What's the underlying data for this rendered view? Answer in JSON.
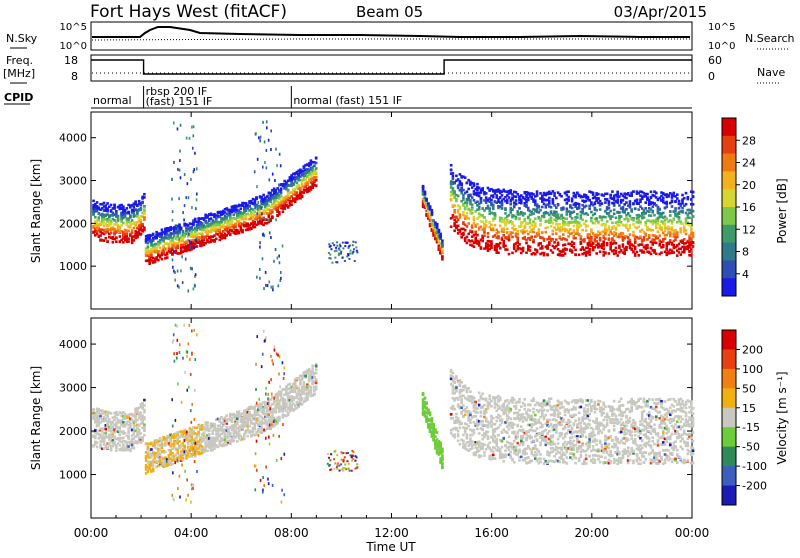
{
  "header": {
    "title": "Fort Hays West (fitACF)",
    "beam": "Beam 05",
    "date": "03/Apr/2015"
  },
  "strips": {
    "nsky_label": "N.Sky",
    "nsearch_label": "N.Search",
    "nsky_ticks": [
      "10^5",
      "10^0"
    ],
    "nsearch_ticks": [
      "10^5",
      "10^0"
    ],
    "freq_label": "Freq.",
    "freq_unit": "[MHz]",
    "freq_ticks": [
      "18",
      "8"
    ],
    "nave_label": "Nave",
    "nave_ticks": [
      "60",
      "0"
    ],
    "cpid_label": "CPID",
    "cpid_segments": [
      {
        "start_hour": 0,
        "end_hour": 2.1,
        "line1": "normal",
        "line2": ""
      },
      {
        "start_hour": 2.1,
        "end_hour": 8.0,
        "line1": "rbsp 200 IF",
        "line2": "(fast) 151 IF"
      },
      {
        "start_hour": 8.0,
        "end_hour": 24,
        "line1": "normal (fast) 151 IF",
        "line2": ""
      }
    ],
    "freq_high_intervals": [
      [
        0,
        2.1
      ],
      [
        14.1,
        24
      ]
    ]
  },
  "chart_data": [
    {
      "type": "heatmap",
      "panel": "power",
      "ylabel": "Slant Range [km]",
      "yticks": [
        "1000",
        "2000",
        "3000",
        "4000"
      ],
      "ylim": [
        0,
        4600
      ],
      "colorbar": {
        "label": "Power [dB]",
        "ticks": [
          "4",
          "8",
          "12",
          "16",
          "20",
          "24",
          "28"
        ],
        "range": [
          0,
          32
        ],
        "colors": [
          "#1a1ae6",
          "#2d4fb5",
          "#2f7a8a",
          "#3f9a6a",
          "#7ec94a",
          "#d6d632",
          "#f2b21e",
          "#ef7a12",
          "#e64010",
          "#d80000"
        ]
      }
    },
    {
      "type": "heatmap",
      "panel": "velocity",
      "ylabel": "Slant Range [km]",
      "yticks": [
        "1000",
        "2000",
        "3000",
        "4000"
      ],
      "ylim": [
        0,
        4600
      ],
      "colorbar": {
        "label": "Velocity [m s⁻¹]",
        "ticks": [
          "200",
          "100",
          "50",
          "15",
          "-15",
          "-50",
          "-100",
          "-200"
        ],
        "colors": [
          "#1a1ab4",
          "#3a5fbf",
          "#2e8b57",
          "#6ccc3a",
          "#c8c8c0",
          "#f0b010",
          "#f08010",
          "#e84010",
          "#d80000"
        ]
      }
    }
  ],
  "xaxis": {
    "ticks": [
      "00:00",
      "04:00",
      "08:00",
      "12:00",
      "16:00",
      "20:00",
      "00:00"
    ],
    "label": "Time UT"
  }
}
